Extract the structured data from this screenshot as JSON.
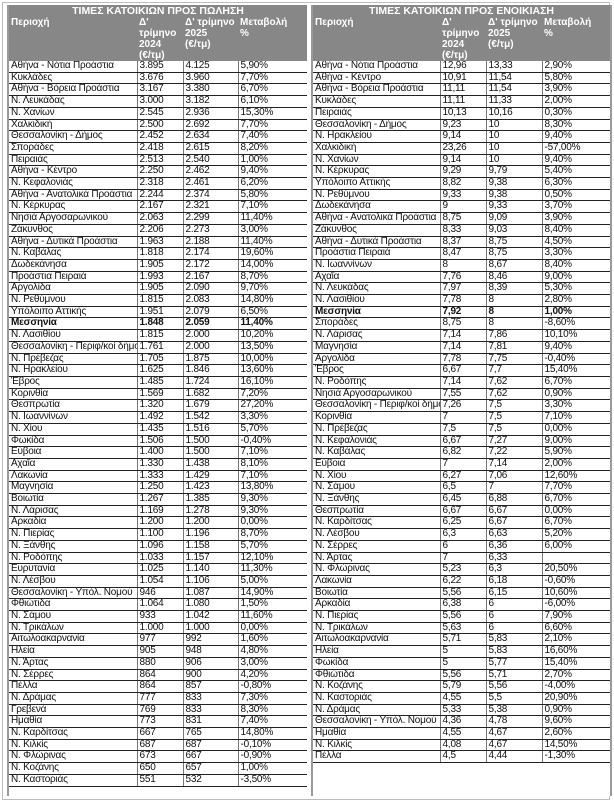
{
  "sale": {
    "title": "ΤΙΜΕΣ ΚΑΤΟΙΚΙΩΝ ΠΡΟΣ ΠΩΛΗΣΗ",
    "headers": [
      "Περιοχή",
      "Δ' τρίμηνο 2024 (€/τμ)",
      "Δ' τρίμηνο 2025 (€/τμ)",
      "Μεταβολή %"
    ],
    "rows": [
      [
        "Αθήνα - Νότια Προάστια",
        "3.895",
        "4.125",
        "5,90%"
      ],
      [
        "Κυκλάδες",
        "3.676",
        "3.960",
        "7,70%"
      ],
      [
        "Αθήνα - Βόρεια Προάστια",
        "3.167",
        "3.380",
        "6,70%"
      ],
      [
        "Ν. Λευκάδας",
        "3.000",
        "3.182",
        "6,10%"
      ],
      [
        "Ν. Χανίων",
        "2.545",
        "2.936",
        "15,30%"
      ],
      [
        "Χαλκιδική",
        "2.500",
        "2.692",
        "7,70%"
      ],
      [
        "Θεσσαλονίκη - Δήμος",
        "2.452",
        "2.634",
        "7,40%"
      ],
      [
        "Σποράδες",
        "2.418",
        "2.615",
        "8,20%"
      ],
      [
        "Πειραιάς",
        "2.513",
        "2.540",
        "1,00%"
      ],
      [
        "Αθήνα - Κέντρο",
        "2.250",
        "2.462",
        "9,40%"
      ],
      [
        "Ν. Κεφαλονιάς",
        "2.318",
        "2.461",
        "6,20%"
      ],
      [
        "Αθήνα - Ανατολικά Προάστια",
        "2.244",
        "2.374",
        "5,80%"
      ],
      [
        "Ν. Κέρκυρας",
        "2.167",
        "2.321",
        "7,10%"
      ],
      [
        "Νησιά Αργοσαρωνικού",
        "2.063",
        "2.299",
        "11,40%"
      ],
      [
        "Ζάκυνθος",
        "2.206",
        "2.273",
        "3,00%"
      ],
      [
        "Αθήνα - Δυτικά Προάστια",
        "1.963",
        "2.188",
        "11,40%"
      ],
      [
        "Ν. Καβάλας",
        "1.818",
        "2.174",
        "19,60%"
      ],
      [
        "Δωδεκάνησα",
        "1.905",
        "2.172",
        "14,00%"
      ],
      [
        "Προάστια Πειραιά",
        "1.993",
        "2.167",
        "8,70%"
      ],
      [
        "Αργολίδα",
        "1.905",
        "2.090",
        "9,70%"
      ],
      [
        "Ν. Ρεθύμνου",
        "1.815",
        "2.083",
        "14,80%"
      ],
      [
        "Υπόλοιπο Αττικής",
        "1.951",
        "2.079",
        "6,50%"
      ],
      [
        "Μεσσηνία",
        "1.848",
        "2.059",
        "11,40%"
      ],
      [
        "Ν. Λασιθίου",
        "1.815",
        "2.000",
        "10,20%"
      ],
      [
        "Θεσσαλονίκη - Περιφ/κοί δήμοι",
        "1.761",
        "2.000",
        "13,50%"
      ],
      [
        "Ν. Πρέβεζας",
        "1.705",
        "1.875",
        "10,00%"
      ],
      [
        "Ν. Ηρακλείου",
        "1.625",
        "1.846",
        "13,60%"
      ],
      [
        "Έβρος",
        "1.485",
        "1.724",
        "16,10%"
      ],
      [
        "Κορινθία",
        "1.569",
        "1.682",
        "7,20%"
      ],
      [
        "Θεσπρωτία",
        "1.320",
        "1.679",
        "27,20%"
      ],
      [
        "Ν. Ιωαννίνων",
        "1.492",
        "1.542",
        "3,30%"
      ],
      [
        "Ν. Χίου",
        "1.435",
        "1.516",
        "5,70%"
      ],
      [
        "Φωκίδα",
        "1.506",
        "1.500",
        "-0,40%"
      ],
      [
        "Εύβοια",
        "1.400",
        "1.500",
        "7,10%"
      ],
      [
        "Αχαΐα",
        "1.330",
        "1.438",
        "8,10%"
      ],
      [
        "Λακωνία",
        "1.333",
        "1.429",
        "7,10%"
      ],
      [
        "Μαγνησία",
        "1.250",
        "1.423",
        "13,80%"
      ],
      [
        "Βοιωτία",
        "1.267",
        "1.385",
        "9,30%"
      ],
      [
        "Ν. Λάρισας",
        "1.169",
        "1.278",
        "9,30%"
      ],
      [
        "Αρκαδία",
        "1.200",
        "1.200",
        "0,00%"
      ],
      [
        "Ν. Πιερίας",
        "1.100",
        "1.196",
        "8,70%"
      ],
      [
        "Ν. Ξάνθης",
        "1.096",
        "1.158",
        "5,70%"
      ],
      [
        "Ν. Ροδόπης",
        "1.033",
        "1.157",
        "12,10%"
      ],
      [
        "Ευρυτανία",
        "1.025",
        "1.140",
        "11,30%"
      ],
      [
        "Ν. Λέσβου",
        "1.054",
        "1.106",
        "5,00%"
      ],
      [
        "Θεσσαλονίκη - Υπόλ. Νομού",
        "946",
        "1.087",
        "14,90%"
      ],
      [
        "Φθιώτιδα",
        "1.064",
        "1.080",
        "1,50%"
      ],
      [
        "Ν. Σάμου",
        "933",
        "1.042",
        "11,60%"
      ],
      [
        "Ν. Τρικάλων",
        "1.000",
        "1.000",
        "0,00%"
      ],
      [
        "Αιτωλοακαρνανία",
        "977",
        "992",
        "1,60%"
      ],
      [
        "Ηλεία",
        "905",
        "948",
        "4,80%"
      ],
      [
        "Ν. Άρτας",
        "880",
        "906",
        "3,00%"
      ],
      [
        "Ν. Σέρρες",
        "864",
        "900",
        "4,20%"
      ],
      [
        "Πέλλα",
        "864",
        "857",
        "-0,80%"
      ],
      [
        "Ν. Δράμας",
        "777",
        "833",
        "7,30%"
      ],
      [
        "Γρεβενά",
        "769",
        "833",
        "8,30%"
      ],
      [
        "Ημαθία",
        "773",
        "831",
        "7,40%"
      ],
      [
        "Ν. Καρδίτσας",
        "667",
        "765",
        "14,80%"
      ],
      [
        "Ν. Κιλκίς",
        "687",
        "687",
        "-0,10%"
      ],
      [
        "Ν. Φλώρινας",
        "673",
        "667",
        "-0,90%"
      ],
      [
        "Ν. Κοζάνης",
        "650",
        "657",
        "1,00%"
      ],
      [
        "Ν. Καστοριάς",
        "551",
        "532",
        "-3,50%"
      ]
    ],
    "highlight_row": "Μεσσηνία"
  },
  "rent": {
    "title": "ΤΙΜΕΣ ΚΑΤΟΙΚΙΩΝ ΠΡΟΣ ΕΝΟΙΚΙΑΣΗ",
    "headers": [
      "Περιοχή",
      "Δ' τρίμηνο 2024 (€/τμ)",
      "Δ' τρίμηνο 2025 (€/τμ)",
      "Μεταβολή %"
    ],
    "rows": [
      [
        "Αθήνα - Νότια Προάστια",
        "12,96",
        "13,33",
        "2,90%"
      ],
      [
        "Αθήνα - Κέντρο",
        "10,91",
        "11,54",
        "5,80%"
      ],
      [
        "Αθήνα - Βόρεια Προάστια",
        "11,11",
        "11,54",
        "3,90%"
      ],
      [
        "Κυκλάδες",
        "11,11",
        "11,33",
        "2,00%"
      ],
      [
        "Πειραιάς",
        "10,13",
        "10,16",
        "0,30%"
      ],
      [
        "Θεσσαλονίκη - Δήμος",
        "9,23",
        "10",
        "8,30%"
      ],
      [
        "Ν. Ηρακλείου",
        "9,14",
        "10",
        "9,40%"
      ],
      [
        "Χαλκιδική",
        "23,26",
        "10",
        "-57,00%"
      ],
      [
        "Ν. Χανίων",
        "9,14",
        "10",
        "9,40%"
      ],
      [
        "Ν. Κέρκυρας",
        "9,29",
        "9,79",
        "5,40%"
      ],
      [
        "Υπόλοιπο Αττικής",
        "8,82",
        "9,38",
        "6,30%"
      ],
      [
        "Ν. Ρεθύμνου",
        "9,33",
        "9,38",
        "0,50%"
      ],
      [
        "Δωδεκάνησα",
        "9",
        "9,33",
        "3,70%"
      ],
      [
        "Αθήνα - Ανατολικά Προάστια",
        "8,75",
        "9,09",
        "3,90%"
      ],
      [
        "Ζάκυνθος",
        "8,33",
        "9,03",
        "8,40%"
      ],
      [
        "Αθήνα - Δυτικά Προάστια",
        "8,37",
        "8,75",
        "4,50%"
      ],
      [
        "Προάστια Πειραιά",
        "8,47",
        "8,75",
        "3,30%"
      ],
      [
        "Ν. Ιωαννίνων",
        "8",
        "8,67",
        "8,40%"
      ],
      [
        "Αχαΐα",
        "7,76",
        "8,46",
        "9,00%"
      ],
      [
        "Ν. Λευκάδας",
        "7,97",
        "8,39",
        "5,30%"
      ],
      [
        "Ν. Λασιθίου",
        "7,78",
        "8",
        "2,80%"
      ],
      [
        "Μεσσηνία",
        "7,92",
        "8",
        "1,00%"
      ],
      [
        "Σποράδες",
        "8,75",
        "8",
        "-8,60%"
      ],
      [
        "Ν. Λάρισας",
        "7,14",
        "7,86",
        "10,10%"
      ],
      [
        "Μαγνησία",
        "7,14",
        "7,81",
        "9,40%"
      ],
      [
        "Αργολίδα",
        "7,78",
        "7,75",
        "-0,40%"
      ],
      [
        "Έβρος",
        "6,67",
        "7,7",
        "15,40%"
      ],
      [
        "Ν. Ροδόπης",
        "7,14",
        "7,62",
        "6,70%"
      ],
      [
        "Νησιά Αργοσαρωνικού",
        "7,55",
        "7,62",
        "0,90%"
      ],
      [
        "Θεσσαλονίκη - Περιφ/κοί δήμοι",
        "7,26",
        "7,5",
        "3,30%"
      ],
      [
        "Κορινθία",
        "7",
        "7,5",
        "7,10%"
      ],
      [
        "Ν. Πρέβεζας",
        "7,5",
        "7,5",
        "0,00%"
      ],
      [
        "Ν. Κεφαλονιάς",
        "6,67",
        "7,27",
        "9,00%"
      ],
      [
        "Ν. Καβάλας",
        "6,82",
        "7,22",
        "5,90%"
      ],
      [
        "Εύβοια",
        "7",
        "7,14",
        "2,00%"
      ],
      [
        "Ν. Χίου",
        "6,27",
        "7,06",
        "12,60%"
      ],
      [
        "Ν. Σάμου",
        "6,5",
        "7",
        "7,70%"
      ],
      [
        "Ν. Ξάνθης",
        "6,45",
        "6,88",
        "6,70%"
      ],
      [
        "Θεσπρωτία",
        "6,67",
        "6,67",
        "0,00%"
      ],
      [
        "Ν. Καρδίτσας",
        "6,25",
        "6,67",
        "6,70%"
      ],
      [
        "Ν. Λέσβου",
        "6,3",
        "6,63",
        "5,20%"
      ],
      [
        "Ν. Σέρρες",
        "6",
        "6,36",
        "6,00%"
      ],
      [
        "Ν. Άρτας",
        "7",
        "6,33",
        ""
      ],
      [
        "Ν. Φλώρινας",
        "5,23",
        "6,3",
        "20,50%"
      ],
      [
        "Λακωνία",
        "6,22",
        "6,18",
        "-0,60%"
      ],
      [
        "Βοιωτία",
        "5,56",
        "6,15",
        "10,60%"
      ],
      [
        "Αρκαδία",
        "6,38",
        "6",
        "-6,00%"
      ],
      [
        "Ν. Πιερίας",
        "5,56",
        "6",
        "7,90%"
      ],
      [
        "Ν. Τρικάλων",
        "5,63",
        "6",
        "6,60%"
      ],
      [
        "Αιτωλοακαρνανία",
        "5,71",
        "5,83",
        "2,10%"
      ],
      [
        "Ηλεία",
        "5",
        "5,83",
        "16,60%"
      ],
      [
        "Φωκίδα",
        "5",
        "5,77",
        "15,40%"
      ],
      [
        "Φθιώτιδα",
        "5,56",
        "5,71",
        "2,70%"
      ],
      [
        "Ν. Κοζάνης",
        "5,79",
        "5,56",
        "-4,00%"
      ],
      [
        "Ν. Καστοριάς",
        "4,55",
        "5,5",
        "20,90%"
      ],
      [
        "Ν. Δράμας",
        "5,33",
        "5,38",
        "0,90%"
      ],
      [
        "Θεσσαλονίκη - Υπόλ. Νομού",
        "4,36",
        "4,78",
        "9,60%"
      ],
      [
        "Ημαθία",
        "4,55",
        "4,67",
        "2,60%"
      ],
      [
        "Ν. Κιλκίς",
        "4,08",
        "4,67",
        "14,50%"
      ],
      [
        "Πέλλα",
        "4,5",
        "4,44",
        "-1,30%"
      ]
    ],
    "highlight_row": "Μεσσηνία"
  }
}
